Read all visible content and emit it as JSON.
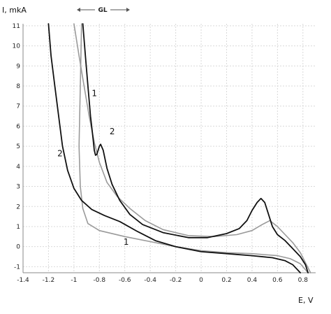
{
  "chart_data": {
    "type": "line",
    "xlabel": "E, V",
    "ylabel": "I, mkA",
    "xlim": [
      -1.4,
      0.9
    ],
    "ylim": [
      -1.3,
      11.1
    ],
    "x_ticks": [
      "-1.4",
      "-1.2",
      "-1",
      "-0.8",
      "-0.6",
      "-0.4",
      "-0.2",
      "0",
      "0.2",
      "0.4",
      "0.6",
      "0.8"
    ],
    "x_tick_values": [
      -1.4,
      -1.2,
      -1.0,
      -0.8,
      -0.6,
      -0.4,
      -0.2,
      0,
      0.2,
      0.4,
      0.6,
      0.8
    ],
    "y_ticks": [
      "-1",
      "0",
      "1",
      "2",
      "3",
      "4",
      "5",
      "6",
      "7",
      "8",
      "9",
      "10",
      "11"
    ],
    "y_tick_values": [
      -1,
      0,
      1,
      2,
      3,
      4,
      5,
      6,
      7,
      8,
      9,
      10,
      11
    ],
    "grid": true,
    "colors": {
      "curve1": "#9a9a9a",
      "curve2": "#111111"
    },
    "toolbar_label": "GL",
    "series": [
      {
        "label": "1",
        "label_anchor": {
          "x": -0.86,
          "y": 7.5
        },
        "color": "#9a9a9a",
        "points": [
          [
            -1.0,
            11.1
          ],
          [
            -0.96,
            9.5
          ],
          [
            -0.92,
            8.0
          ],
          [
            -0.88,
            6.5
          ],
          [
            -0.84,
            5.2
          ],
          [
            -0.8,
            4.2
          ],
          [
            -0.74,
            3.2
          ],
          [
            -0.66,
            2.5
          ],
          [
            -0.56,
            1.9
          ],
          [
            -0.44,
            1.3
          ],
          [
            -0.3,
            0.85
          ],
          [
            -0.1,
            0.55
          ],
          [
            0.1,
            0.5
          ],
          [
            0.28,
            0.6
          ],
          [
            0.4,
            0.8
          ],
          [
            0.48,
            1.1
          ],
          [
            0.54,
            1.3
          ],
          [
            0.6,
            1.0
          ],
          [
            0.66,
            0.6
          ],
          [
            0.72,
            0.2
          ],
          [
            0.78,
            -0.3
          ],
          [
            0.82,
            -0.8
          ],
          [
            0.86,
            -1.3
          ]
        ]
      },
      {
        "label": "1",
        "label_anchor": {
          "x": -0.61,
          "y": 0.1
        },
        "color": "#9a9a9a",
        "points": [
          [
            -0.94,
            11.1
          ],
          [
            -0.95,
            8.0
          ],
          [
            -0.96,
            5.0
          ],
          [
            -0.95,
            3.0
          ],
          [
            -0.93,
            1.9
          ],
          [
            -0.89,
            1.15
          ],
          [
            -0.8,
            0.8
          ],
          [
            -0.6,
            0.5
          ],
          [
            -0.4,
            0.25
          ],
          [
            -0.2,
            0.0
          ],
          [
            0.0,
            -0.2
          ],
          [
            0.2,
            -0.3
          ],
          [
            0.4,
            -0.35
          ],
          [
            0.6,
            -0.45
          ],
          [
            0.7,
            -0.6
          ],
          [
            0.78,
            -0.85
          ],
          [
            0.84,
            -1.3
          ]
        ]
      },
      {
        "label": "2",
        "label_anchor": {
          "x": -0.72,
          "y": 5.6
        },
        "color": "#111111",
        "points": [
          [
            -0.93,
            11.1
          ],
          [
            -0.91,
            9.5
          ],
          [
            -0.89,
            8.0
          ],
          [
            -0.87,
            6.5
          ],
          [
            -0.85,
            5.4
          ],
          [
            -0.84,
            4.8
          ],
          [
            -0.83,
            4.55
          ],
          [
            -0.82,
            4.6
          ],
          [
            -0.8,
            5.0
          ],
          [
            -0.79,
            5.1
          ],
          [
            -0.77,
            4.8
          ],
          [
            -0.74,
            3.9
          ],
          [
            -0.7,
            3.1
          ],
          [
            -0.64,
            2.3
          ],
          [
            -0.56,
            1.6
          ],
          [
            -0.46,
            1.1
          ],
          [
            -0.3,
            0.7
          ],
          [
            -0.1,
            0.45
          ],
          [
            0.05,
            0.45
          ],
          [
            0.2,
            0.65
          ],
          [
            0.3,
            0.9
          ],
          [
            0.36,
            1.3
          ],
          [
            0.4,
            1.8
          ],
          [
            0.44,
            2.2
          ],
          [
            0.47,
            2.4
          ],
          [
            0.5,
            2.2
          ],
          [
            0.53,
            1.6
          ],
          [
            0.56,
            1.0
          ],
          [
            0.6,
            0.6
          ],
          [
            0.66,
            0.3
          ],
          [
            0.72,
            -0.1
          ],
          [
            0.78,
            -0.5
          ],
          [
            0.82,
            -0.9
          ],
          [
            0.84,
            -1.3
          ]
        ]
      },
      {
        "label": "2",
        "label_anchor": {
          "x": -1.13,
          "y": 4.5
        },
        "color": "#111111",
        "points": [
          [
            -1.2,
            11.1
          ],
          [
            -1.18,
            9.5
          ],
          [
            -1.15,
            8.0
          ],
          [
            -1.12,
            6.5
          ],
          [
            -1.09,
            5.0
          ],
          [
            -1.05,
            3.8
          ],
          [
            -1.0,
            2.9
          ],
          [
            -0.94,
            2.3
          ],
          [
            -0.86,
            1.85
          ],
          [
            -0.76,
            1.55
          ],
          [
            -0.64,
            1.25
          ],
          [
            -0.5,
            0.75
          ],
          [
            -0.36,
            0.3
          ],
          [
            -0.2,
            0.0
          ],
          [
            0.0,
            -0.25
          ],
          [
            0.2,
            -0.35
          ],
          [
            0.4,
            -0.45
          ],
          [
            0.56,
            -0.55
          ],
          [
            0.66,
            -0.7
          ],
          [
            0.72,
            -0.9
          ],
          [
            0.78,
            -1.3
          ]
        ]
      }
    ]
  }
}
